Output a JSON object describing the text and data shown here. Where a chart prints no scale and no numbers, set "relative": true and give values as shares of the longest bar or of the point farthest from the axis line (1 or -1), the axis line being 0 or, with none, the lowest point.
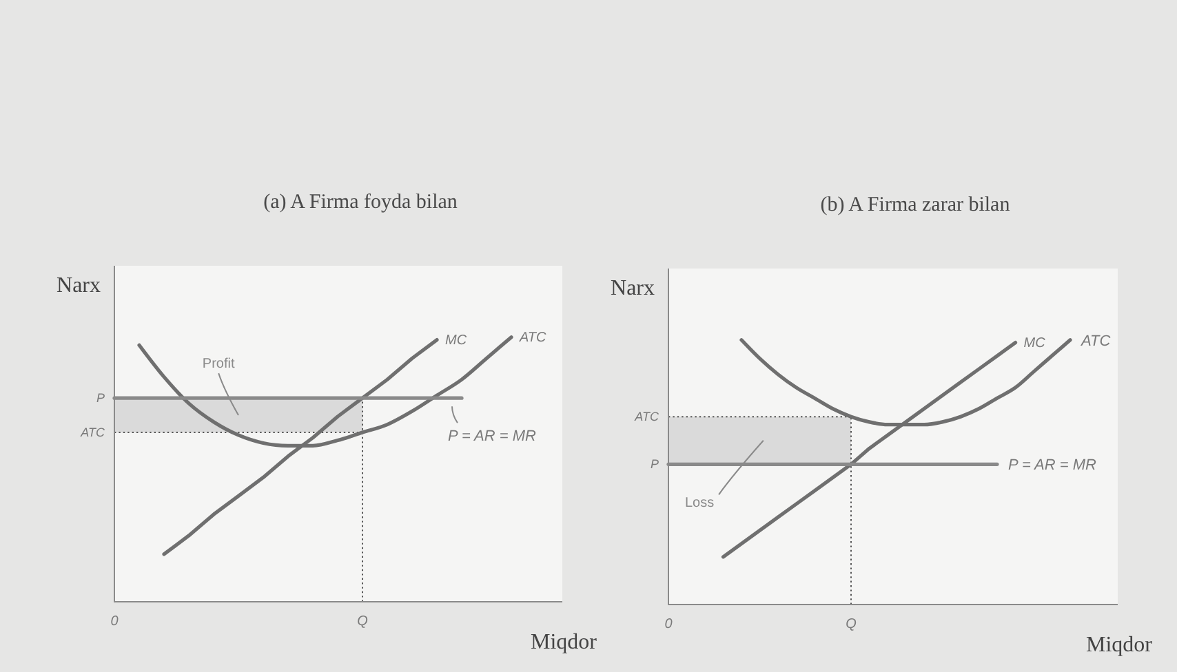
{
  "chart_data": [
    {
      "type": "line",
      "title": "(a) A Firma foyda bilan",
      "xlabel": "Miqdor",
      "ylabel": "Narx",
      "relative": true,
      "categories": [
        "0",
        null,
        null,
        null,
        null,
        null,
        null,
        null,
        null,
        null,
        "Q",
        null,
        null,
        null,
        null,
        null,
        null,
        null,
        null
      ],
      "series": [
        {
          "name": "MC",
          "color": "#6f6f6f",
          "values": [
            null,
            null,
            0.18,
            0.25,
            0.33,
            0.4,
            0.47,
            0.55,
            0.62,
            0.7,
            0.77,
            0.84,
            0.92,
            0.99,
            null,
            null,
            null,
            null,
            null
          ]
        },
        {
          "name": "ATC",
          "color": "#6f6f6f",
          "values": [
            null,
            0.97,
            0.85,
            0.75,
            0.68,
            0.63,
            0.6,
            0.59,
            0.59,
            0.61,
            0.64,
            0.67,
            0.72,
            0.78,
            0.84,
            0.92,
            1.0,
            null,
            null
          ]
        },
        {
          "name": "P = AR = MR",
          "color": "#8a8a8a",
          "values": [
            0.77,
            0.77,
            0.77,
            0.77,
            0.77,
            0.77,
            0.77,
            0.77,
            0.77,
            0.77,
            0.77,
            0.77,
            0.77,
            0.77,
            0.77,
            null,
            null,
            null,
            null
          ]
        }
      ],
      "ref_lines": [
        {
          "axis": "x",
          "value": "Q",
          "color": "#555555",
          "line_style": "dotted"
        },
        {
          "axis": "y",
          "value": 0.64,
          "label": "ATC",
          "color": "#555555",
          "line_style": "dotted"
        }
      ],
      "bands": [
        {
          "axis": "y",
          "from": 0.64,
          "to": 0.77,
          "label": "Profit",
          "color": "#dadada"
        }
      ],
      "annotations": [
        {
          "text": "P",
          "x": "0",
          "y": 0.77
        }
      ]
    },
    {
      "type": "line",
      "title": "(b) A Firma zarar bilan",
      "xlabel": "Miqdor",
      "ylabel": "Narx",
      "relative": true,
      "categories": [
        "0",
        null,
        null,
        null,
        null,
        null,
        null,
        null,
        null,
        null,
        "Q",
        null,
        null,
        null,
        null,
        null,
        null,
        null,
        null,
        null,
        null,
        null,
        null,
        null,
        null
      ],
      "series": [
        {
          "name": "MC",
          "color": "#6f6f6f",
          "values": [
            null,
            null,
            null,
            0.18,
            0.23,
            0.28,
            0.33,
            0.38,
            0.43,
            0.48,
            0.53,
            0.59,
            0.64,
            0.69,
            0.74,
            0.79,
            0.84,
            0.89,
            0.94,
            0.99,
            null,
            null,
            null,
            null,
            null
          ]
        },
        {
          "name": "ATC",
          "color": "#6f6f6f",
          "values": [
            null,
            null,
            null,
            null,
            1.0,
            0.93,
            0.87,
            0.82,
            0.78,
            0.74,
            0.71,
            0.69,
            0.68,
            0.68,
            0.68,
            0.69,
            0.71,
            0.74,
            0.78,
            0.82,
            0.88,
            0.94,
            1.0,
            null,
            null
          ]
        },
        {
          "name": "P = AR = MR",
          "color": "#8a8a8a",
          "values": [
            0.53,
            0.53,
            0.53,
            0.53,
            0.53,
            0.53,
            0.53,
            0.53,
            0.53,
            0.53,
            0.53,
            0.53,
            0.53,
            0.53,
            0.53,
            0.53,
            0.53,
            0.53,
            0.53,
            null,
            null,
            null,
            null,
            null,
            null
          ]
        }
      ],
      "ref_lines": [
        {
          "axis": "x",
          "value": "Q",
          "color": "#555555",
          "line_style": "dotted"
        },
        {
          "axis": "y",
          "value": 0.71,
          "label": "ATC",
          "color": "#555555",
          "line_style": "dotted"
        }
      ],
      "bands": [
        {
          "axis": "y",
          "from": 0.71,
          "to": 0.53,
          "label": "Loss",
          "color": "#dadada"
        }
      ],
      "annotations": [
        {
          "text": "P",
          "x": "0",
          "y": 0.53
        }
      ]
    }
  ]
}
